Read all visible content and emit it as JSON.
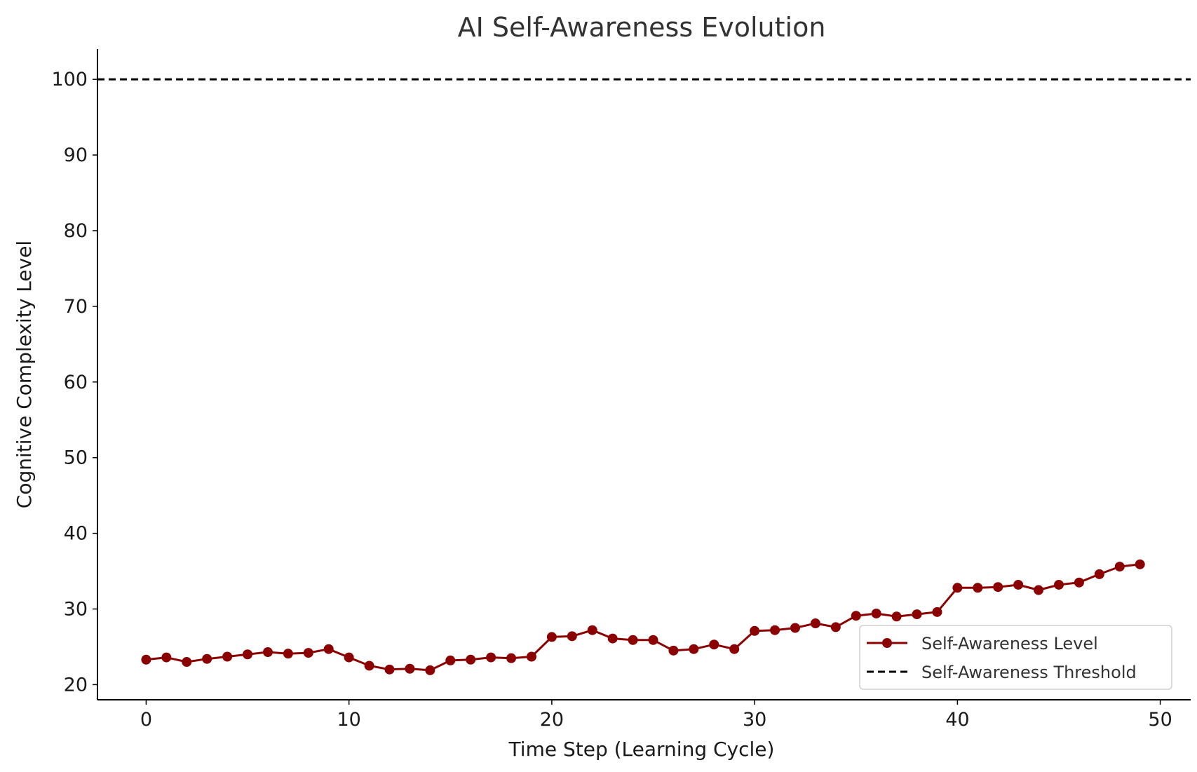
{
  "chart_data": {
    "type": "line",
    "title": "AI Self-Awareness Evolution",
    "xlabel": "Time Step (Learning Cycle)",
    "ylabel": "Cognitive Complexity Level",
    "xlim": [
      -2.4,
      51.5
    ],
    "ylim": [
      18,
      104
    ],
    "xticks": [
      0,
      10,
      20,
      30,
      40,
      50
    ],
    "yticks": [
      20,
      30,
      40,
      50,
      60,
      70,
      80,
      90,
      100
    ],
    "grid": false,
    "legend_position": "lower-right",
    "series": [
      {
        "name": "Self-Awareness Level",
        "color": "#8b0000",
        "style": "solid",
        "marker": "circle",
        "x": [
          0,
          1,
          2,
          3,
          4,
          5,
          6,
          7,
          8,
          9,
          10,
          11,
          12,
          13,
          14,
          15,
          16,
          17,
          18,
          19,
          20,
          21,
          22,
          23,
          24,
          25,
          26,
          27,
          28,
          29,
          30,
          31,
          32,
          33,
          34,
          35,
          36,
          37,
          38,
          39,
          40,
          41,
          42,
          43,
          44,
          45,
          46,
          47,
          48,
          49
        ],
        "values": [
          23.3,
          23.6,
          23.0,
          23.4,
          23.7,
          24.0,
          24.3,
          24.1,
          24.2,
          24.7,
          23.6,
          22.5,
          22.0,
          22.1,
          21.9,
          23.2,
          23.3,
          23.6,
          23.5,
          23.7,
          26.3,
          26.4,
          27.2,
          26.1,
          25.9,
          25.9,
          24.5,
          24.7,
          25.3,
          24.7,
          27.1,
          27.2,
          27.5,
          28.1,
          27.6,
          29.1,
          29.4,
          29.0,
          29.3,
          29.6,
          32.8,
          32.8,
          32.9,
          33.2,
          32.5,
          33.2,
          33.5,
          34.6,
          35.6,
          35.9
        ]
      },
      {
        "name": "Self-Awareness Threshold",
        "color": "#000000",
        "style": "dashed",
        "y": 100
      }
    ]
  }
}
